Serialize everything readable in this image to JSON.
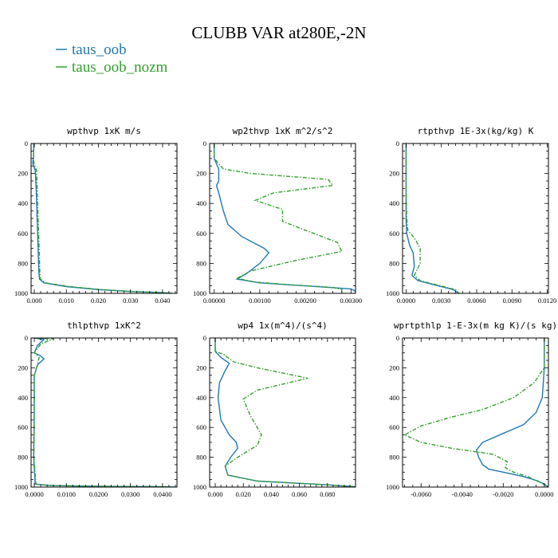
{
  "figure": {
    "title": "CLUBB VAR at280E,-2N"
  },
  "chart_data": {
    "legend": [
      {
        "name": "taus_oob",
        "color": "#1f78b4"
      },
      {
        "name": "taus_oob_nozm",
        "color": "#33a02c"
      }
    ],
    "panels": [
      {
        "title": "wpthvp   1xK m/s",
        "type": "line",
        "ylim": [
          1000,
          0
        ],
        "xlim": [
          -0.001,
          0.0445
        ],
        "xticks": [
          "0.000",
          "0.010",
          "0.020",
          "0.030",
          "0.040"
        ],
        "xtick_values": [
          0.0,
          0.01,
          0.02,
          0.03,
          0.04
        ],
        "yticks": [
          "0",
          "200",
          "400",
          "600",
          "800",
          "1000"
        ],
        "series": [
          {
            "name": "taus_oob",
            "points": [
              [
                -0.0002,
                0
              ],
              [
                -0.0002,
                90
              ],
              [
                -0.0005,
                130
              ],
              [
                0.0003,
                180
              ],
              [
                0.0006,
                300
              ],
              [
                0.0009,
                500
              ],
              [
                0.0012,
                700
              ],
              [
                0.0014,
                850
              ],
              [
                0.0016,
                905
              ],
              [
                0.003,
                930
              ],
              [
                0.01,
                955
              ],
              [
                0.02,
                975
              ],
              [
                0.03,
                988
              ],
              [
                0.04,
                995
              ],
              [
                0.043,
                1000
              ]
            ]
          },
          {
            "name": "taus_oob_nozm",
            "points": [
              [
                0.0,
                0
              ],
              [
                -0.0003,
                90
              ],
              [
                -0.0001,
                130
              ],
              [
                0.0007,
                180
              ],
              [
                0.0009,
                300
              ],
              [
                0.0012,
                500
              ],
              [
                0.0015,
                700
              ],
              [
                0.0017,
                850
              ],
              [
                0.0019,
                905
              ],
              [
                0.0035,
                930
              ],
              [
                0.011,
                955
              ],
              [
                0.021,
                975
              ],
              [
                0.031,
                988
              ],
              [
                0.04,
                995
              ],
              [
                0.043,
                1000
              ]
            ]
          }
        ]
      },
      {
        "title": "wp2thvp   1xK m^2/s^2",
        "type": "line",
        "ylim": [
          1000,
          0
        ],
        "xlim": [
          -0.0001,
          0.0031
        ],
        "xticks": [
          "0.00000",
          "0.00100",
          "0.00200",
          "0.00300"
        ],
        "xtick_values": [
          0.0,
          0.001,
          0.002,
          0.003
        ],
        "yticks": [
          "0",
          "200",
          "400",
          "600",
          "800",
          "1000"
        ],
        "series": [
          {
            "name": "taus_oob",
            "points": [
              [
                0.0,
                0
              ],
              [
                0.0,
                100
              ],
              [
                0.0001,
                170
              ],
              [
                0.0001,
                250
              ],
              [
                5e-05,
                280
              ],
              [
                0.0001,
                330
              ],
              [
                0.0002,
                450
              ],
              [
                0.0003,
                540
              ],
              [
                0.0006,
                620
              ],
              [
                0.0011,
                700
              ],
              [
                0.0012,
                730
              ],
              [
                0.001,
                800
              ],
              [
                0.0007,
                870
              ],
              [
                0.0005,
                905
              ],
              [
                0.001,
                930
              ],
              [
                0.002,
                950
              ],
              [
                0.003,
                970
              ],
              [
                0.0031,
                985
              ],
              [
                0.0031,
                1000
              ]
            ]
          },
          {
            "name": "taus_oob_nozm",
            "points": [
              [
                0.0,
                0
              ],
              [
                0.0,
                100
              ],
              [
                0.0002,
                170
              ],
              [
                0.0008,
                200
              ],
              [
                0.0025,
                240
              ],
              [
                0.0026,
                280
              ],
              [
                0.0013,
                330
              ],
              [
                0.0009,
                380
              ],
              [
                0.0011,
                400
              ],
              [
                0.0015,
                440
              ],
              [
                0.0015,
                520
              ],
              [
                0.0027,
                660
              ],
              [
                0.0028,
                720
              ],
              [
                0.0018,
                780
              ],
              [
                0.0008,
                850
              ],
              [
                0.0005,
                900
              ],
              [
                0.0009,
                925
              ],
              [
                0.0018,
                945
              ],
              [
                0.0026,
                960
              ],
              [
                0.0028,
                975
              ],
              [
                0.0028,
                1000
              ]
            ]
          }
        ]
      },
      {
        "title": "rtpthvp   1E-3x(kg/kg) K",
        "type": "line",
        "ylim": [
          1000,
          0
        ],
        "xlim": [
          -0.0003,
          0.0121
        ],
        "xticks": [
          "0.0000",
          "0.0030",
          "0.0060",
          "0.0090",
          "0.0120"
        ],
        "xtick_values": [
          0.0,
          0.003,
          0.006,
          0.009,
          0.012
        ],
        "yticks": [
          "0",
          "200",
          "400",
          "600",
          "800",
          "1000"
        ],
        "series": [
          {
            "name": "taus_oob",
            "points": [
              [
                0.0,
                0
              ],
              [
                0.0,
                300
              ],
              [
                0.0,
                500
              ],
              [
                5e-05,
                600
              ],
              [
                0.0003,
                680
              ],
              [
                0.0006,
                730
              ],
              [
                0.0007,
                820
              ],
              [
                0.0005,
                880
              ],
              [
                0.001,
                915
              ],
              [
                0.0025,
                945
              ],
              [
                0.004,
                975
              ],
              [
                0.0045,
                1000
              ]
            ]
          },
          {
            "name": "taus_oob_nozm",
            "points": [
              [
                0.0,
                0
              ],
              [
                0.0,
                300
              ],
              [
                5e-05,
                500
              ],
              [
                0.00015,
                580
              ],
              [
                0.0007,
                630
              ],
              [
                0.0012,
                700
              ],
              [
                0.0012,
                800
              ],
              [
                0.0007,
                880
              ],
              [
                0.0012,
                915
              ],
              [
                0.0027,
                945
              ],
              [
                0.0042,
                975
              ],
              [
                0.0045,
                1000
              ]
            ]
          }
        ]
      },
      {
        "title": "thlpthvp   1xK^2",
        "type": "line",
        "ylim": [
          1000,
          0
        ],
        "xlim": [
          -0.001,
          0.0445
        ],
        "xticks": [
          "0.0000",
          "0.0100",
          "0.0200",
          "0.0300",
          "0.0400"
        ],
        "xtick_values": [
          0.0,
          0.01,
          0.02,
          0.03,
          0.04
        ],
        "yticks": [
          "0",
          "200",
          "400",
          "600",
          "800",
          "1000"
        ],
        "series": [
          {
            "name": "taus_oob",
            "points": [
              [
                0.0,
                0
              ],
              [
                0.003,
                10
              ],
              [
                0.001,
                50
              ],
              [
                0.0,
                100
              ],
              [
                0.002,
                120
              ],
              [
                0.003,
                140
              ],
              [
                0.001,
                180
              ],
              [
                0.0,
                250
              ],
              [
                0.0,
                500
              ],
              [
                -0.0002,
                800
              ],
              [
                0.0003,
                980
              ],
              [
                0.005,
                990
              ],
              [
                0.02,
                995
              ],
              [
                0.04,
                998
              ],
              [
                0.044,
                1000
              ]
            ]
          },
          {
            "name": "taus_oob_nozm",
            "points": [
              [
                0.0,
                0
              ],
              [
                0.006,
                5
              ],
              [
                0.002,
                40
              ],
              [
                0.0,
                100
              ],
              [
                0.0015,
                130
              ],
              [
                0.001,
                180
              ],
              [
                0.0,
                250
              ],
              [
                0.0,
                500
              ],
              [
                -0.0001,
                800
              ],
              [
                0.0005,
                980
              ],
              [
                0.006,
                990
              ],
              [
                0.021,
                995
              ],
              [
                0.041,
                998
              ],
              [
                0.044,
                1000
              ]
            ]
          }
        ]
      },
      {
        "title": "wp4   1x(m^4)/(s^4)",
        "type": "line",
        "ylim": [
          1000,
          0
        ],
        "xlim": [
          -0.004,
          0.1
        ],
        "xticks": [
          "0.000",
          "0.020",
          "0.040",
          "0.060",
          "0.080"
        ],
        "xtick_values": [
          0.0,
          0.02,
          0.04,
          0.06,
          0.08
        ],
        "yticks": [
          "0",
          "200",
          "400",
          "600",
          "800",
          "1000"
        ],
        "series": [
          {
            "name": "taus_oob",
            "points": [
              [
                0.0,
                0
              ],
              [
                0.0,
                90
              ],
              [
                0.004,
                130
              ],
              [
                0.01,
                170
              ],
              [
                0.007,
                220
              ],
              [
                0.003,
                300
              ],
              [
                0.002,
                400
              ],
              [
                0.004,
                550
              ],
              [
                0.01,
                650
              ],
              [
                0.015,
                700
              ],
              [
                0.016,
                740
              ],
              [
                0.011,
                800
              ],
              [
                0.007,
                860
              ],
              [
                0.009,
                920
              ],
              [
                0.03,
                960
              ],
              [
                0.08,
                985
              ],
              [
                0.1,
                998
              ]
            ]
          },
          {
            "name": "taus_oob_nozm",
            "points": [
              [
                0.0,
                0
              ],
              [
                0.0,
                90
              ],
              [
                0.006,
                110
              ],
              [
                0.013,
                160
              ],
              [
                0.03,
                200
              ],
              [
                0.066,
                270
              ],
              [
                0.03,
                350
              ],
              [
                0.02,
                410
              ],
              [
                0.025,
                520
              ],
              [
                0.033,
                650
              ],
              [
                0.03,
                720
              ],
              [
                0.016,
                800
              ],
              [
                0.007,
                860
              ],
              [
                0.009,
                920
              ],
              [
                0.03,
                960
              ],
              [
                0.08,
                985
              ],
              [
                0.1,
                998
              ]
            ]
          }
        ]
      },
      {
        "title": "wprtpthlp   1-E-3x(m kg K)/(s kg)",
        "type": "line",
        "ylim": [
          1000,
          0
        ],
        "xlim": [
          -0.0069,
          0.0002
        ],
        "xticks": [
          "-0.0060",
          "-0.0040",
          "-0.0020",
          "0.0000"
        ],
        "xtick_values": [
          -0.006,
          -0.004,
          -0.002,
          0.0
        ],
        "yticks": [
          "0",
          "200",
          "400",
          "600",
          "800",
          "1000"
        ],
        "series": [
          {
            "name": "taus_oob",
            "points": [
              [
                0.0,
                0
              ],
              [
                0.0,
                200
              ],
              [
                -0.0001,
                400
              ],
              [
                -0.0004,
                500
              ],
              [
                -0.001,
                580
              ],
              [
                -0.002,
                640
              ],
              [
                -0.003,
                700
              ],
              [
                -0.0033,
                750
              ],
              [
                -0.0032,
                800
              ],
              [
                -0.003,
                850
              ],
              [
                -0.0027,
                880
              ],
              [
                -0.002,
                900
              ],
              [
                -0.001,
                930
              ],
              [
                -0.0003,
                960
              ],
              [
                0.0,
                980
              ],
              [
                0.0002,
                1000
              ]
            ]
          },
          {
            "name": "taus_oob_nozm",
            "points": [
              [
                0.0,
                0
              ],
              [
                0.0,
                200
              ],
              [
                -0.0005,
                300
              ],
              [
                -0.0015,
                400
              ],
              [
                -0.003,
                480
              ],
              [
                -0.0045,
                530
              ],
              [
                -0.006,
                590
              ],
              [
                -0.0068,
                650
              ],
              [
                -0.006,
                700
              ],
              [
                -0.0045,
                740
              ],
              [
                -0.0025,
                780
              ],
              [
                -0.0018,
                830
              ],
              [
                -0.0019,
                870
              ],
              [
                -0.0015,
                900
              ],
              [
                -0.0008,
                930
              ],
              [
                -0.0002,
                970
              ],
              [
                0.0002,
                1000
              ]
            ]
          }
        ]
      }
    ]
  }
}
